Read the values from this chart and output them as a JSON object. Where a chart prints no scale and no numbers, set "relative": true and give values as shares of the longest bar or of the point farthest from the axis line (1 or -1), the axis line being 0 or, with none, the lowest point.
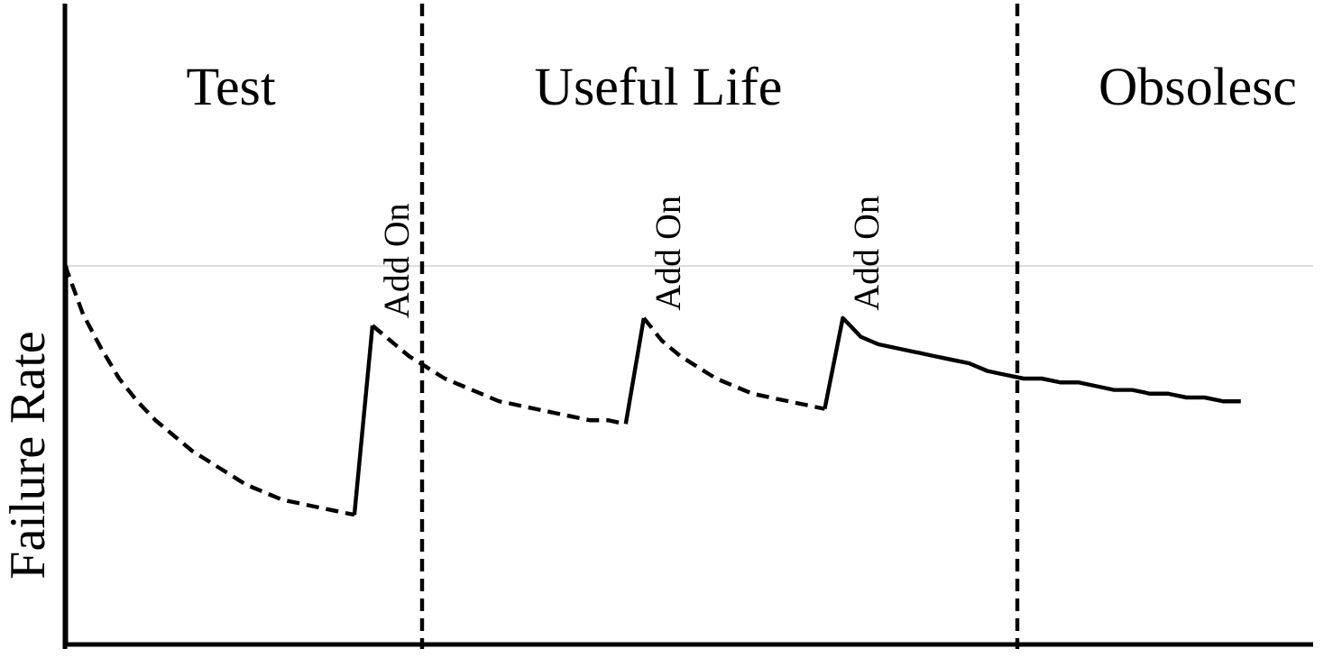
{
  "chart_data": {
    "type": "line",
    "relative": true,
    "ylabel": "Failure Rate",
    "grid": false,
    "categories": [
      null,
      null,
      null,
      null,
      null,
      null,
      null,
      null,
      null,
      null,
      null,
      null,
      null,
      null,
      null,
      null,
      null,
      null,
      null,
      null,
      null,
      null,
      null,
      null,
      null,
      null,
      null,
      null,
      null,
      null,
      null,
      null,
      null,
      null,
      null,
      null,
      null,
      null,
      null,
      null,
      null,
      null,
      null,
      null,
      null,
      null,
      null,
      null,
      null,
      null,
      null,
      null,
      null,
      null,
      null,
      null,
      null,
      null,
      null,
      null,
      null,
      null,
      null,
      null,
      null,
      null,
      null,
      null,
      null,
      null
    ],
    "series": [
      {
        "color": "#000000",
        "line_style": "dashed",
        "values": [
          1.0,
          0.87,
          0.78,
          0.7,
          0.64,
          0.59,
          0.55,
          0.51,
          0.48,
          0.45,
          0.42,
          0.4,
          0.38,
          0.37,
          0.36,
          0.35,
          0.34,
          null,
          null,
          null,
          null,
          null,
          null,
          null,
          null,
          null,
          null,
          null,
          null,
          null,
          null,
          null,
          null,
          null,
          null,
          null,
          null,
          null,
          null,
          null,
          null,
          null,
          null,
          null,
          null,
          null,
          null,
          null,
          null,
          null,
          null,
          null,
          null,
          null,
          null,
          null,
          null,
          null,
          null,
          null,
          null,
          null,
          null,
          null,
          null,
          null,
          null,
          null,
          null,
          null
        ]
      },
      {
        "color": "#000000",
        "line_style": "solid",
        "values": [
          null,
          null,
          null,
          null,
          null,
          null,
          null,
          null,
          null,
          null,
          null,
          null,
          null,
          null,
          null,
          null,
          0.34,
          0.84,
          null,
          null,
          null,
          null,
          null,
          null,
          null,
          null,
          null,
          null,
          null,
          null,
          null,
          null,
          null,
          null,
          null,
          null,
          null,
          null,
          null,
          null,
          null,
          null,
          null,
          null,
          null,
          null,
          null,
          null,
          null,
          null,
          null,
          null,
          null,
          null,
          null,
          null,
          null,
          null,
          null,
          null,
          null,
          null,
          null,
          null,
          null,
          null,
          null,
          null,
          null,
          null
        ]
      },
      {
        "color": "#000000",
        "line_style": "dashed",
        "values": [
          null,
          null,
          null,
          null,
          null,
          null,
          null,
          null,
          null,
          null,
          null,
          null,
          null,
          null,
          null,
          null,
          null,
          0.84,
          0.8,
          0.76,
          0.73,
          0.7,
          0.68,
          0.66,
          0.64,
          0.63,
          0.62,
          0.61,
          0.6,
          0.59,
          0.59,
          0.58,
          null,
          null,
          null,
          null,
          null,
          null,
          null,
          null,
          null,
          null,
          null,
          null,
          null,
          null,
          null,
          null,
          null,
          null,
          null,
          null,
          null,
          null,
          null,
          null,
          null,
          null,
          null,
          null,
          null,
          null,
          null,
          null,
          null,
          null,
          null,
          null,
          null,
          null
        ]
      },
      {
        "color": "#000000",
        "line_style": "solid",
        "values": [
          null,
          null,
          null,
          null,
          null,
          null,
          null,
          null,
          null,
          null,
          null,
          null,
          null,
          null,
          null,
          null,
          null,
          null,
          null,
          null,
          null,
          null,
          null,
          null,
          null,
          null,
          null,
          null,
          null,
          null,
          null,
          0.58,
          0.86,
          null,
          null,
          null,
          null,
          null,
          null,
          null,
          null,
          null,
          null,
          null,
          null,
          null,
          null,
          null,
          null,
          null,
          null,
          null,
          null,
          null,
          null,
          null,
          null,
          null,
          null,
          null,
          null,
          null,
          null,
          null,
          null,
          null,
          null,
          null,
          null,
          null
        ]
      },
      {
        "color": "#000000",
        "line_style": "dashed",
        "values": [
          null,
          null,
          null,
          null,
          null,
          null,
          null,
          null,
          null,
          null,
          null,
          null,
          null,
          null,
          null,
          null,
          null,
          null,
          null,
          null,
          null,
          null,
          null,
          null,
          null,
          null,
          null,
          null,
          null,
          null,
          null,
          null,
          0.86,
          0.8,
          0.76,
          0.73,
          0.7,
          0.68,
          0.66,
          0.65,
          0.64,
          0.63,
          0.62,
          null,
          null,
          null,
          null,
          null,
          null,
          null,
          null,
          null,
          null,
          null,
          null,
          null,
          null,
          null,
          null,
          null,
          null,
          null,
          null,
          null,
          null,
          null,
          null,
          null,
          null,
          null
        ]
      },
      {
        "color": "#000000",
        "line_style": "solid",
        "values": [
          null,
          null,
          null,
          null,
          null,
          null,
          null,
          null,
          null,
          null,
          null,
          null,
          null,
          null,
          null,
          null,
          null,
          null,
          null,
          null,
          null,
          null,
          null,
          null,
          null,
          null,
          null,
          null,
          null,
          null,
          null,
          null,
          null,
          null,
          null,
          null,
          null,
          null,
          null,
          null,
          null,
          null,
          0.62,
          0.86,
          0.81,
          0.79,
          0.78,
          0.77,
          0.76,
          0.75,
          0.74,
          0.72,
          0.71,
          0.7,
          0.7,
          0.69,
          0.69,
          0.68,
          0.67,
          0.67,
          0.66,
          0.66,
          0.65,
          0.65,
          0.64,
          0.64,
          null,
          null,
          null,
          null
        ]
      }
    ],
    "annotations": [
      "Test",
      "Useful Life",
      "Obsolesc",
      "Add On",
      "Add On",
      "Add On"
    ]
  }
}
